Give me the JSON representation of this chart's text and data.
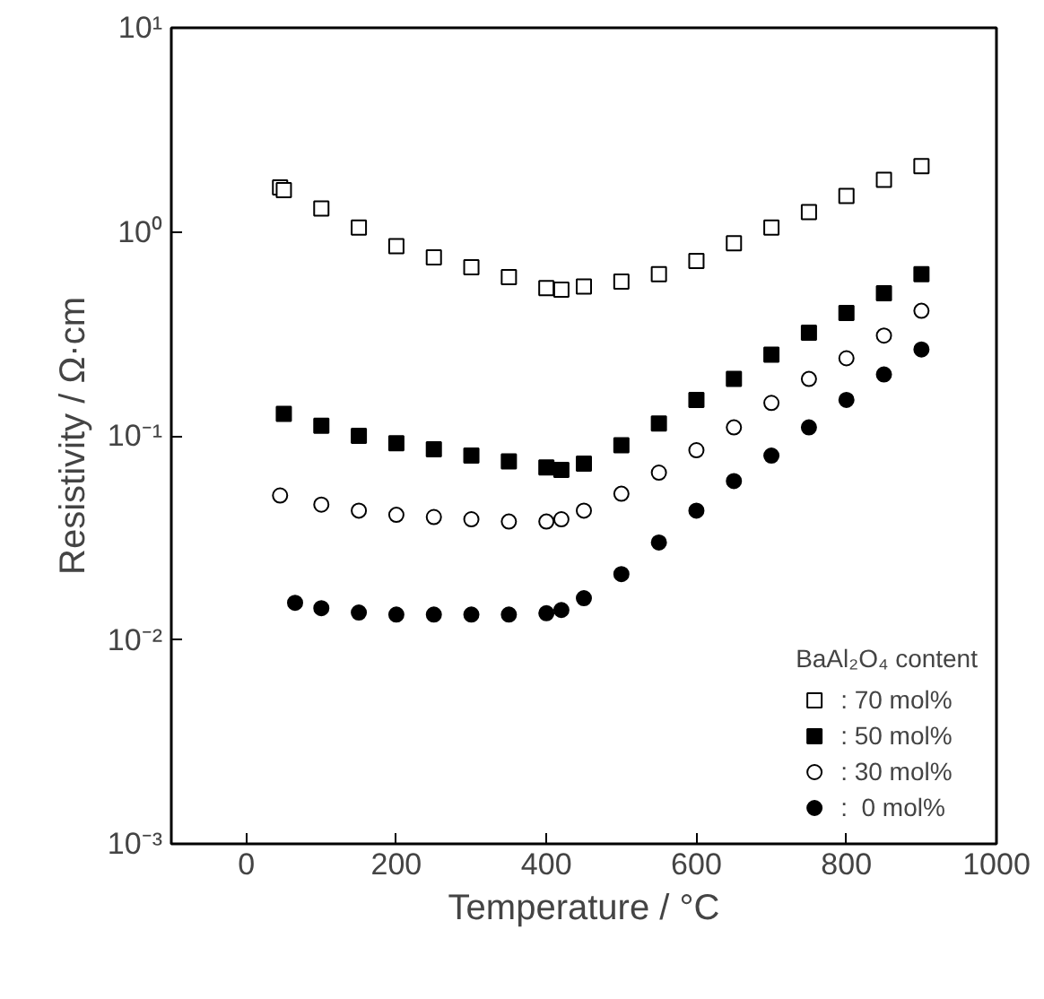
{
  "chart_data": {
    "type": "scatter",
    "xlabel": "Temperature / °C",
    "ylabel": "Resistivity / Ω·cm",
    "log": "y",
    "xlim": [
      -100,
      1000
    ],
    "xticks": [
      0,
      200,
      400,
      600,
      800,
      1000
    ],
    "ylim": [
      0.001,
      10
    ],
    "yticks": [
      {
        "value": 0.001,
        "label": "10⁻³"
      },
      {
        "value": 0.01,
        "label": "10⁻²"
      },
      {
        "value": 0.1,
        "label": "10⁻¹"
      },
      {
        "value": 1,
        "label": "10⁰"
      },
      {
        "value": 10,
        "label": "10¹"
      }
    ],
    "grid": false,
    "legend": "bottom right",
    "legend_title": "BaAl₂O₄ content",
    "series": [
      {
        "name": ": 70 mol%",
        "color": "#000000",
        "marker": "square",
        "x": [
          45,
          50,
          100,
          150,
          200,
          250,
          300,
          350,
          400,
          420,
          450,
          500,
          550,
          600,
          650,
          700,
          750,
          800,
          850,
          900
        ],
        "values": [
          1.65,
          1.6,
          1.3,
          1.05,
          0.85,
          0.75,
          0.67,
          0.6,
          0.53,
          0.52,
          0.54,
          0.57,
          0.62,
          0.72,
          0.88,
          1.05,
          1.25,
          1.5,
          1.8,
          2.1
        ]
      },
      {
        "name": ": 50 mol%",
        "color": "#000000",
        "marker": "square",
        "x": [
          50,
          100,
          150,
          200,
          250,
          300,
          350,
          400,
          420,
          450,
          500,
          550,
          600,
          650,
          700,
          750,
          800,
          850,
          900
        ],
        "values": [
          0.128,
          0.112,
          0.1,
          0.092,
          0.086,
          0.08,
          0.075,
          0.07,
          0.068,
          0.073,
          0.09,
          0.115,
          0.15,
          0.19,
          0.25,
          0.32,
          0.4,
          0.5,
          0.62
        ]
      },
      {
        "name": ": 30 mol%",
        "color": "#000000",
        "marker": "circle",
        "x": [
          45,
          100,
          150,
          200,
          250,
          300,
          350,
          400,
          420,
          450,
          500,
          550,
          600,
          650,
          700,
          750,
          800,
          850,
          900
        ],
        "values": [
          0.051,
          0.046,
          0.043,
          0.041,
          0.04,
          0.039,
          0.038,
          0.038,
          0.039,
          0.043,
          0.052,
          0.066,
          0.085,
          0.11,
          0.145,
          0.19,
          0.24,
          0.31,
          0.41
        ]
      },
      {
        "name": ":  0 mol%",
        "color": "#000000",
        "marker": "circle",
        "x": [
          65,
          100,
          150,
          200,
          250,
          300,
          350,
          400,
          420,
          450,
          500,
          550,
          600,
          650,
          700,
          750,
          800,
          850,
          900
        ],
        "values": [
          0.0152,
          0.0143,
          0.0136,
          0.0133,
          0.0133,
          0.0133,
          0.0133,
          0.0135,
          0.014,
          0.016,
          0.021,
          0.03,
          0.043,
          0.06,
          0.08,
          0.11,
          0.15,
          0.2,
          0.265
        ]
      }
    ]
  }
}
